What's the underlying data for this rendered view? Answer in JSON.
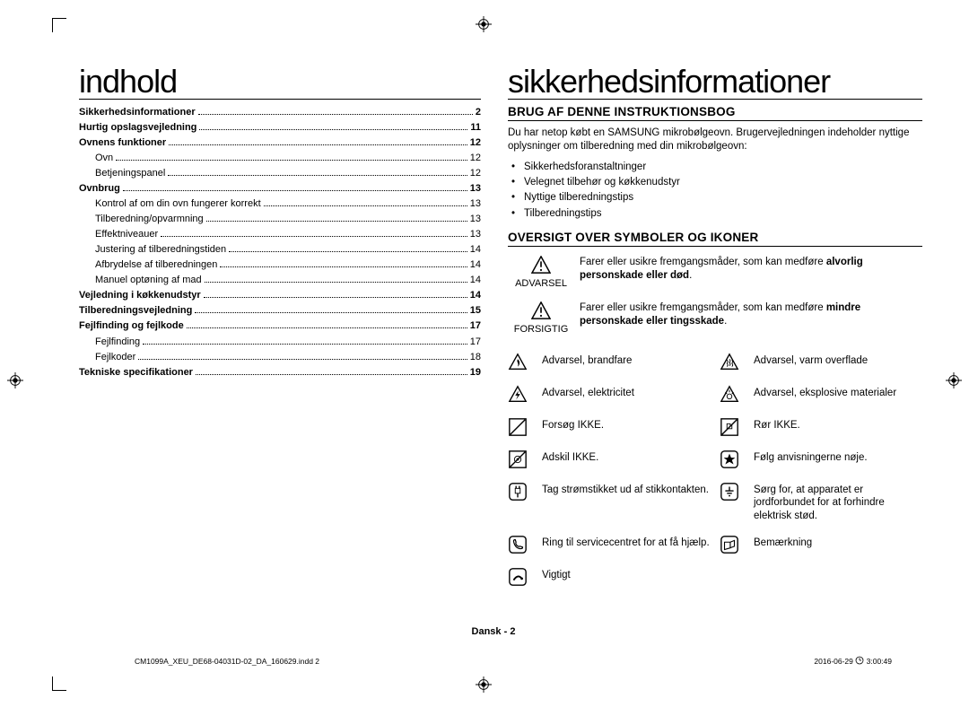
{
  "left": {
    "heading": "indhold",
    "toc": [
      {
        "label": "Sikkerhedsinformationer",
        "page": "2",
        "bold": true,
        "sub": false
      },
      {
        "label": "Hurtig opslagsvejledning",
        "page": "11",
        "bold": true,
        "sub": false
      },
      {
        "label": "Ovnens funktioner",
        "page": "12",
        "bold": true,
        "sub": false
      },
      {
        "label": "Ovn",
        "page": "12",
        "bold": false,
        "sub": true
      },
      {
        "label": "Betjeningspanel",
        "page": "12",
        "bold": false,
        "sub": true
      },
      {
        "label": "Ovnbrug",
        "page": "13",
        "bold": true,
        "sub": false
      },
      {
        "label": "Kontrol af om din ovn fungerer korrekt",
        "page": "13",
        "bold": false,
        "sub": true
      },
      {
        "label": "Tilberedning/opvarmning",
        "page": "13",
        "bold": false,
        "sub": true
      },
      {
        "label": "Effektniveauer",
        "page": "13",
        "bold": false,
        "sub": true
      },
      {
        "label": "Justering af tilberedningstiden",
        "page": "14",
        "bold": false,
        "sub": true
      },
      {
        "label": "Afbrydelse af tilberedningen",
        "page": "14",
        "bold": false,
        "sub": true
      },
      {
        "label": "Manuel optøning af mad",
        "page": "14",
        "bold": false,
        "sub": true
      },
      {
        "label": "Vejledning i køkkenudstyr",
        "page": "14",
        "bold": true,
        "sub": false
      },
      {
        "label": "Tilberedningsvejledning",
        "page": "15",
        "bold": true,
        "sub": false
      },
      {
        "label": "Fejlfinding og fejlkode",
        "page": "17",
        "bold": true,
        "sub": false
      },
      {
        "label": "Fejlfinding",
        "page": "17",
        "bold": false,
        "sub": true
      },
      {
        "label": "Fejlkoder",
        "page": "18",
        "bold": false,
        "sub": true
      },
      {
        "label": "Tekniske specifikationer",
        "page": "19",
        "bold": true,
        "sub": false
      }
    ]
  },
  "right": {
    "heading": "sikkerhedsinformationer",
    "section1_title": "BRUG AF DENNE INSTRUKTIONSBOG",
    "section1_body": "Du har netop købt en SAMSUNG mikrobølgeovn. Brugervejledningen indeholder nyttige oplysninger om tilberedning med din mikrobølgeovn:",
    "section1_bullets": [
      "Sikkerhedsforanstaltninger",
      "Velegnet tilbehør og køkkenudstyr",
      "Nyttige tilberedningstips",
      "Tilberedningstips"
    ],
    "section2_title": "OVERSIGT OVER SYMBOLER OG IKONER",
    "warn_advarsel_label": "ADVARSEL",
    "warn_advarsel_text1": "Farer eller usikre fremgangsmåder, som kan medføre ",
    "warn_advarsel_bold": "alvorlig personskade eller død",
    "warn_forsigtig_label": "FORSIGTIG",
    "warn_forsigtig_text1": "Farer eller usikre fremgangsmåder, som kan medføre ",
    "warn_forsigtig_bold": "mindre personskade eller tingsskade",
    "icons": [
      {
        "name": "fire-warning-icon",
        "text": "Advarsel, brandfare"
      },
      {
        "name": "hot-surface-warning-icon",
        "text": "Advarsel, varm overflade"
      },
      {
        "name": "electricity-warning-icon",
        "text": "Advarsel, elektricitet"
      },
      {
        "name": "explosive-warning-icon",
        "text": "Advarsel, eksplosive materialer"
      },
      {
        "name": "do-not-attempt-icon",
        "text": "Forsøg IKKE."
      },
      {
        "name": "do-not-touch-icon",
        "text": "Rør IKKE."
      },
      {
        "name": "do-not-disassemble-icon",
        "text": "Adskil IKKE."
      },
      {
        "name": "follow-instructions-icon",
        "text": "Følg anvisningerne nøje."
      },
      {
        "name": "unplug-icon",
        "text": "Tag strømstikket ud af stikkontakten."
      },
      {
        "name": "grounding-icon",
        "text": "Sørg for, at apparatet er jordforbundet for at forhindre elektrisk stød."
      },
      {
        "name": "call-service-icon",
        "text": "Ring til servicecentret for at få hjælp."
      },
      {
        "name": "note-icon",
        "text": "Bemærkning"
      },
      {
        "name": "important-icon",
        "text": "Vigtigt"
      }
    ]
  },
  "footer": {
    "center": "Dansk - 2",
    "left": "CM1099A_XEU_DE68-04031D-02_DA_160629.indd   2",
    "right_date": "2016-06-29   ",
    "right_time": " 3:00:49"
  },
  "colors": {
    "text": "#000000",
    "background": "#ffffff"
  }
}
